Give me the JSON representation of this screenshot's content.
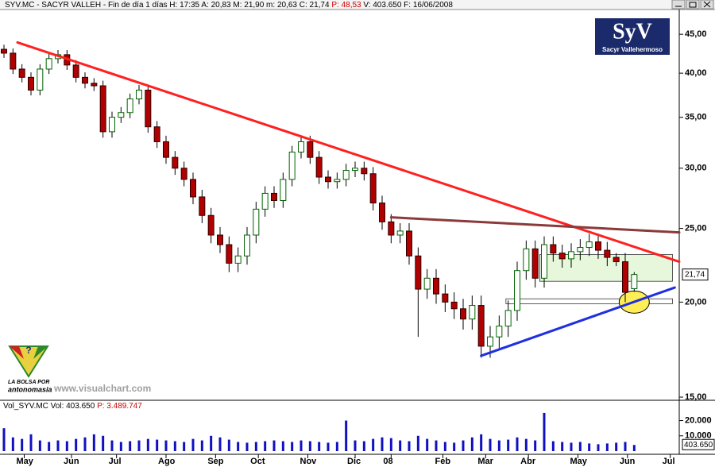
{
  "header": {
    "parts": [
      "SYV.MC - SACYR VALLEH - Fin de día 1 días H: 17:35 A: 20,83 M: 21,90 m: 20,63 C: 21,74",
      "P: 48,53",
      "V: 403.650 F: 16/06/2008"
    ]
  },
  "logo": {
    "mark": "SyV",
    "name": "Sacyr Vallehermoso"
  },
  "branding": {
    "line1": "LA BOLSA POR",
    "line2": "antonomasia",
    "site": "www.visualchart.com"
  },
  "chart_data": {
    "type": "candlestick",
    "log_scale": true,
    "up_color": "#ffffff",
    "up_stroke": "#006400",
    "down_color": "#b00000",
    "down_stroke": "#300000",
    "x": [
      0,
      4,
      8,
      12,
      16,
      20,
      24,
      28,
      32,
      36,
      40,
      44,
      48,
      52,
      56,
      60,
      64,
      68,
      72,
      76,
      80,
      84,
      88,
      92,
      96,
      100,
      104,
      108,
      112,
      116,
      120,
      124,
      128,
      132,
      136,
      140,
      144,
      148,
      152,
      156,
      160,
      164,
      168,
      172,
      176,
      180,
      184,
      188,
      192,
      196,
      200,
      204,
      208,
      212,
      216,
      220,
      224,
      228,
      232,
      236,
      240,
      244,
      248,
      252,
      256,
      260,
      264,
      268,
      272,
      276,
      280
    ],
    "open": [
      43,
      42.5,
      40.5,
      39.5,
      38,
      40.5,
      41.8,
      42.3,
      41,
      39.5,
      38.8,
      38.5,
      33.5,
      35,
      35.5,
      37,
      38,
      34,
      32.5,
      31,
      30,
      29,
      27.5,
      26,
      24.5,
      23.8,
      22.5,
      23,
      24.5,
      26.5,
      27.8,
      27.2,
      29,
      31.5,
      32.5,
      31,
      29.2,
      28.8,
      29,
      29.8,
      30,
      29.5,
      27,
      25.5,
      24.5,
      24.8,
      23,
      20.8,
      21.5,
      20.5,
      20,
      19.6,
      19,
      19.8,
      17.5,
      18,
      18.6,
      19.5,
      22,
      23.5,
      21.5,
      23.8,
      23.2,
      22.8,
      23.3,
      23.6,
      24,
      23.4,
      22.9,
      22.6,
      20.83
    ],
    "high": [
      43.6,
      43.1,
      41.1,
      40.1,
      41.1,
      42.4,
      42.9,
      42.9,
      41.6,
      40.1,
      39.4,
      39.1,
      35.6,
      36.1,
      37.6,
      38.6,
      38.6,
      34.6,
      33.1,
      31.6,
      30.6,
      29.6,
      28.1,
      26.6,
      25.1,
      24.4,
      23.6,
      25.1,
      27.1,
      28.4,
      28.4,
      29.6,
      32.1,
      33.1,
      33.1,
      31.6,
      29.8,
      29.6,
      30.4,
      30.6,
      30.6,
      30.1,
      27.6,
      26.1,
      25.4,
      25.4,
      23.6,
      22.1,
      22.1,
      21.1,
      20.6,
      20.2,
      20.4,
      20.4,
      18.6,
      19.2,
      20.1,
      22.6,
      24.1,
      24.1,
      24.4,
      24.4,
      23.8,
      23.9,
      24.2,
      24.6,
      24.6,
      24.0,
      23.2,
      23.2,
      21.9
    ],
    "low": [
      41.9,
      39.9,
      38.9,
      37.4,
      37.4,
      39.9,
      41.2,
      40.4,
      38.9,
      38.2,
      37.9,
      32.9,
      32.9,
      34.4,
      34.9,
      36.4,
      33.4,
      31.9,
      30.4,
      29.4,
      28.4,
      26.9,
      25.4,
      23.9,
      23.2,
      21.9,
      21.9,
      22.4,
      23.9,
      25.9,
      26.6,
      26.6,
      28.4,
      30.9,
      30.4,
      28.6,
      28.2,
      28.2,
      28.4,
      29.2,
      28.9,
      26.4,
      24.9,
      23.9,
      23.9,
      22.4,
      18.0,
      20.2,
      19.9,
      19.4,
      19.0,
      18.4,
      18.4,
      16.9,
      16.9,
      17.4,
      18.0,
      18.9,
      21.4,
      20.9,
      20.9,
      22.6,
      22.2,
      22.2,
      22.7,
      23.0,
      22.8,
      22.3,
      22.3,
      20.0,
      20.63
    ],
    "close": [
      42.5,
      40.5,
      39.5,
      38,
      40.5,
      41.8,
      42.3,
      41,
      39.5,
      38.8,
      38.5,
      33.5,
      35,
      35.5,
      37,
      38,
      34,
      32.5,
      31,
      30,
      29,
      27.5,
      26,
      24.5,
      23.8,
      22.5,
      23,
      24.5,
      26.5,
      27.8,
      27.2,
      29,
      31.5,
      32.5,
      31,
      29.2,
      28.8,
      29,
      29.8,
      30,
      29.5,
      27,
      25.5,
      24.5,
      24.8,
      23,
      20.8,
      21.5,
      20.5,
      20,
      19.6,
      19,
      19.8,
      17.5,
      18,
      18.6,
      19.5,
      22,
      23.5,
      21.5,
      23.8,
      23.2,
      22.8,
      23.3,
      23.6,
      24,
      23.4,
      22.9,
      22.6,
      20.6,
      21.74
    ],
    "last_label": "21,74",
    "xlim": [
      0,
      300
    ],
    "xticks": [
      {
        "value": 9,
        "label": "May"
      },
      {
        "value": 30,
        "label": "Jun"
      },
      {
        "value": 50,
        "label": "Jul"
      },
      {
        "value": 72,
        "label": "Ago"
      },
      {
        "value": 94,
        "label": "Sep"
      },
      {
        "value": 113,
        "label": "Oct"
      },
      {
        "value": 135,
        "label": "Nov"
      },
      {
        "value": 156,
        "label": "Dic"
      },
      {
        "value": 172,
        "label": "08"
      },
      {
        "value": 195,
        "label": "Feb"
      },
      {
        "value": 214,
        "label": "Mar"
      },
      {
        "value": 233,
        "label": "Abr"
      },
      {
        "value": 255,
        "label": "May"
      },
      {
        "value": 277,
        "label": "Jun"
      },
      {
        "value": 296,
        "label": "Jul"
      }
    ],
    "ylim": [
      15,
      48.5
    ],
    "yticks": [
      {
        "value": 15,
        "label": "15,00"
      },
      {
        "value": 20,
        "label": "20,00"
      },
      {
        "value": 25,
        "label": "25,00"
      },
      {
        "value": 30,
        "label": "30,00"
      },
      {
        "value": 35,
        "label": "35,00"
      },
      {
        "value": 40,
        "label": "40,00"
      },
      {
        "value": 45,
        "label": "45,00"
      }
    ],
    "lines": [
      {
        "x": [
          6,
          300
        ],
        "y": [
          43.9,
          22.6
        ],
        "color": "#ff2020"
      },
      {
        "x": [
          172,
          300
        ],
        "y": [
          25.85,
          24.7
        ],
        "color": "#8b3a3a"
      },
      {
        "x": [
          212,
          298
        ],
        "y": [
          17.0,
          20.9
        ],
        "color": "#2030e0"
      }
    ],
    "boxes": [
      {
        "x": [
          238,
          297
        ],
        "y": [
          21.3,
          23.1
        ],
        "color": "#e6f7dc"
      },
      {
        "x": [
          223,
          297
        ],
        "y": [
          19.9,
          20.2
        ],
        "color": "#ffffff"
      }
    ],
    "ellipse": {
      "x": 280,
      "y": 20.0,
      "color": "#ffee55"
    },
    "volume": {
      "title": "Vol_SYV.MC Vol: 403.650",
      "title_extra": "P: 3.489.747",
      "color": "#1010c0",
      "values": [
        1500000,
        900000,
        800000,
        1100000,
        700000,
        600000,
        700000,
        650000,
        800000,
        900000,
        1100000,
        1000000,
        700000,
        600000,
        650000,
        700000,
        800000,
        750000,
        700000,
        650000,
        600000,
        800000,
        700000,
        1000000,
        900000,
        750000,
        600000,
        550000,
        600000,
        650000,
        700000,
        650000,
        600000,
        700000,
        650000,
        600000,
        550000,
        600000,
        2000000,
        700000,
        650000,
        800000,
        900000,
        850000,
        700000,
        650000,
        1000000,
        800000,
        700000,
        600000,
        550000,
        700000,
        900000,
        1100000,
        800000,
        700000,
        750000,
        900000,
        800000,
        700000,
        2500000,
        650000,
        600000,
        550000,
        600000,
        500000,
        450000,
        500000,
        550000,
        600000,
        403650
      ],
      "last_label": "403.650",
      "ylim": [
        0,
        2600000
      ],
      "yticks": [
        {
          "value": 1000000,
          "label": "10.000"
        },
        {
          "value": 2000000,
          "label": "20.000"
        }
      ]
    }
  }
}
